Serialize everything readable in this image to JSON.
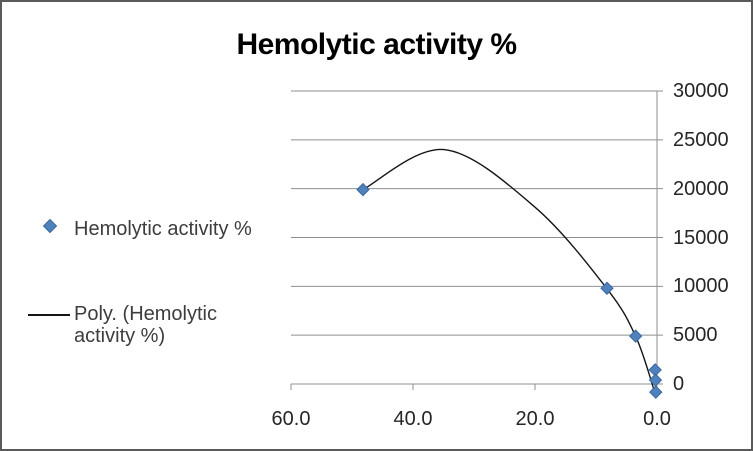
{
  "chart_data": {
    "type": "scatter",
    "title": "Hemolytic activity %",
    "series": [
      {
        "name": "Hemolytic activity %",
        "marker": "diamond",
        "color": "#4f81bd",
        "marker_border_color": "#3a689f",
        "points": [
          [
            48.2,
            19900
          ],
          [
            8.2,
            9800
          ],
          [
            3.5,
            4900
          ],
          [
            0.3,
            1450
          ],
          [
            0.25,
            400
          ],
          [
            0.2,
            -830
          ]
        ]
      }
    ],
    "trendlines": [
      {
        "name": "Poly. (Hemolytic activity %)",
        "kind": "polynomial",
        "color": "#161616",
        "curve_points": [
          [
            48.2,
            19900
          ],
          [
            34.9,
            24000
          ],
          [
            20.0,
            18100
          ],
          [
            8.2,
            9750
          ],
          [
            3.45,
            4800
          ],
          [
            0.33,
            -920
          ]
        ]
      }
    ],
    "x_axis": {
      "min": 0,
      "max": 60,
      "reversed": true,
      "tick_values": [
        60,
        40,
        20,
        0
      ],
      "tick_labels": [
        "60.0",
        "40.0",
        "20.0",
        "0.0"
      ]
    },
    "y_axis": {
      "min": 0,
      "max": 30000,
      "side": "right",
      "tick_values": [
        30000,
        25000,
        20000,
        15000,
        10000,
        5000,
        0
      ],
      "tick_labels": [
        "30000",
        "25000",
        "20000",
        "15000",
        "10000",
        "5000",
        "0"
      ]
    },
    "legend": {
      "position": "left",
      "items": [
        {
          "label": "Hemolytic activity %",
          "key": "diamond"
        },
        {
          "label": "Poly. (Hemolytic activity %)",
          "key": "line"
        }
      ]
    },
    "grid": true,
    "colors": {
      "gridline": "#8f8f8f",
      "axis": "#8f8f8f",
      "axis_text": "#262626",
      "legend_text": "#3d3d3d",
      "title_text": "#000000",
      "chart_border": "#5a5a5a",
      "background": "#ffffff"
    }
  }
}
